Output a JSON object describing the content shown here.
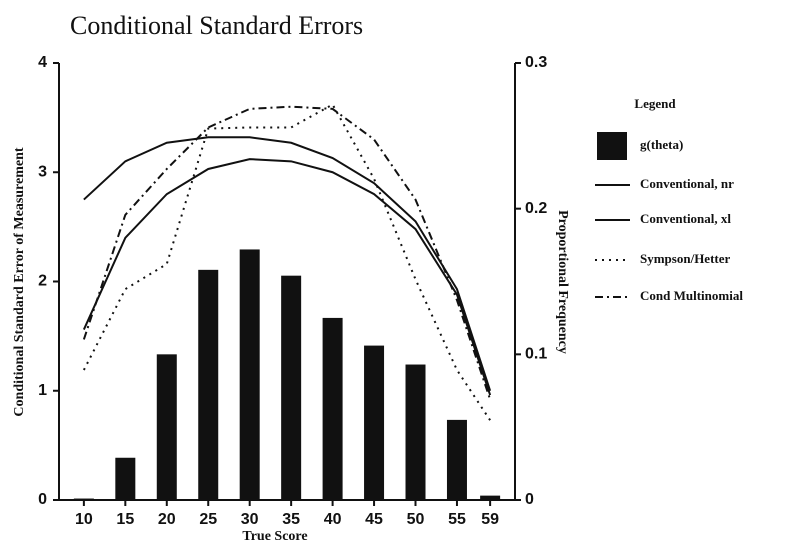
{
  "chart_data": {
    "type": "combo",
    "title": "Conditional Standard Errors",
    "x_label": "True Score",
    "y_label": "Conditional Standard Error of Measurement",
    "y2_label": "Proportional Frequency",
    "legend_title": "Legend",
    "x": [
      10,
      15,
      20,
      25,
      30,
      35,
      40,
      45,
      50,
      55,
      59
    ],
    "xlim": [
      7,
      62
    ],
    "xticks": [
      10,
      15,
      20,
      25,
      30,
      35,
      40,
      45,
      50,
      55,
      59
    ],
    "ylim": [
      0,
      4
    ],
    "yticks": [
      0,
      1,
      2,
      3,
      4
    ],
    "y2lim": [
      0,
      0.3
    ],
    "y2ticks": [
      0,
      0.1,
      0.2,
      0.3
    ],
    "series": [
      {
        "name": "g(theta)",
        "kind": "bar",
        "axis": "y2",
        "color": "#111111",
        "values": [
          0.001,
          0.029,
          0.1,
          0.158,
          0.172,
          0.154,
          0.125,
          0.106,
          0.093,
          0.055,
          0.003
        ]
      },
      {
        "name": "Conventional, nr",
        "kind": "line",
        "dash": "solid",
        "color": "#111111",
        "values": [
          2.75,
          3.1,
          3.27,
          3.32,
          3.32,
          3.27,
          3.13,
          2.9,
          2.55,
          1.93,
          1.0
        ]
      },
      {
        "name": "Conventional, xl",
        "kind": "line",
        "dash": "solid",
        "color": "#111111",
        "values": [
          1.56,
          2.4,
          2.8,
          3.03,
          3.12,
          3.1,
          3.0,
          2.8,
          2.48,
          1.88,
          0.96
        ]
      },
      {
        "name": "Sympson/Hetter",
        "kind": "line",
        "dash": "dotted",
        "color": "#111111",
        "values": [
          1.19,
          1.93,
          2.16,
          3.4,
          3.41,
          3.41,
          3.62,
          2.94,
          2.02,
          1.19,
          0.73
        ]
      },
      {
        "name": "Cond Multinomial",
        "kind": "line",
        "dash": "dashdot",
        "color": "#111111",
        "values": [
          1.47,
          2.61,
          3.03,
          3.41,
          3.58,
          3.6,
          3.58,
          3.3,
          2.75,
          1.83,
          0.92
        ]
      }
    ]
  }
}
